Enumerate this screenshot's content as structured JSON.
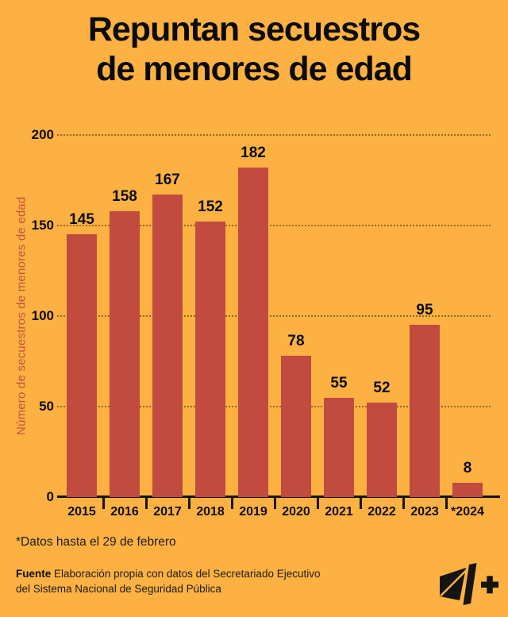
{
  "title": {
    "line1": "Repuntan secuestros",
    "line2": "de menores de edad"
  },
  "chart_data": {
    "type": "bar",
    "title": "Repuntan secuestros de menores de edad",
    "categories": [
      "2015",
      "2016",
      "2017",
      "2018",
      "2019",
      "2020",
      "2021",
      "2022",
      "2023",
      "*2024"
    ],
    "values": [
      145,
      158,
      167,
      152,
      182,
      78,
      55,
      52,
      95,
      8
    ],
    "xlabel": "",
    "ylabel": "Número de secuestros de menores de edad",
    "ylim": [
      0,
      200
    ],
    "yticks": [
      0,
      50,
      100,
      150,
      200
    ],
    "grid": "horizontal-dotted",
    "legend": "none",
    "bar_color": "#C14B3E",
    "background_color": "#FCB142",
    "axis_title_color": "#C8503C"
  },
  "footnote": "*Datos hasta el 29 de febrero",
  "source": {
    "label": "Fuente",
    "line1": "Elaboración propia con datos del Secretariado Ejecutivo",
    "line2": "del Sistema Nacional de Seguridad Pública"
  },
  "logo": {
    "name": "N+"
  }
}
